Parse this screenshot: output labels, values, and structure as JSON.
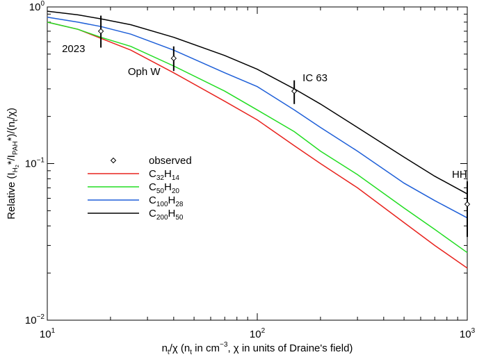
{
  "chart_data": {
    "type": "line",
    "xscale": "log",
    "yscale": "log",
    "xlim": [
      10,
      1000
    ],
    "ylim": [
      0.01,
      1
    ],
    "grid": false,
    "legend_position": "middle-left",
    "xlabel": {
      "pre": "n",
      "pre_sub": "t",
      "mid1": "/χ  (n",
      "mid1_sub": "t",
      "mid2": " in cm",
      "mid2_sup": "−3",
      "post": ", χ in units of Draine's field)"
    },
    "ylabel": {
      "pre": "Relative  (I",
      "sub1": "H",
      "sub1b": "2",
      "mid": "*/I",
      "sub2": "PAH",
      "post": "*)/(n",
      "sub3": "t",
      "end": "/χ)"
    },
    "xticks": [
      {
        "value": 10,
        "base": "10",
        "exp": "1"
      },
      {
        "value": 100,
        "base": "10",
        "exp": "2"
      },
      {
        "value": 1000,
        "base": "10",
        "exp": "3"
      }
    ],
    "yticks": [
      {
        "value": 0.01,
        "base": "10",
        "exp": "−2"
      },
      {
        "value": 0.1,
        "base": "10",
        "exp": "−1"
      },
      {
        "value": 1,
        "base": "10",
        "exp": "0"
      }
    ],
    "series": [
      {
        "name": "C32H14",
        "label_parts": [
          "C",
          "32",
          "H",
          "14"
        ],
        "color": "#e8231e",
        "x": [
          10,
          14,
          18,
          25,
          40,
          70,
          100,
          150,
          200,
          300,
          500,
          700,
          1000
        ],
        "y": [
          0.8,
          0.72,
          0.63,
          0.53,
          0.38,
          0.25,
          0.19,
          0.13,
          0.1,
          0.07,
          0.042,
          0.03,
          0.0215
        ]
      },
      {
        "name": "C50H20",
        "label_parts": [
          "C",
          "50",
          "H",
          "20"
        ],
        "color": "#22dd22",
        "x": [
          10,
          14,
          18,
          25,
          40,
          70,
          100,
          150,
          200,
          300,
          500,
          700,
          1000
        ],
        "y": [
          0.8,
          0.72,
          0.64,
          0.56,
          0.42,
          0.29,
          0.22,
          0.16,
          0.12,
          0.085,
          0.052,
          0.038,
          0.027
        ]
      },
      {
        "name": "C100H28",
        "label_parts": [
          "C",
          "100",
          "H",
          "28"
        ],
        "color": "#1e5fd8",
        "x": [
          10,
          14,
          18,
          25,
          40,
          70,
          100,
          150,
          200,
          300,
          500,
          700,
          1000
        ],
        "y": [
          0.86,
          0.8,
          0.75,
          0.67,
          0.53,
          0.38,
          0.31,
          0.22,
          0.17,
          0.12,
          0.075,
          0.058,
          0.045
        ]
      },
      {
        "name": "C200H50",
        "label_parts": [
          "C",
          "200",
          "H",
          "50"
        ],
        "color": "#000000",
        "x": [
          10,
          14,
          18,
          25,
          40,
          70,
          100,
          150,
          200,
          300,
          500,
          700,
          1000
        ],
        "y": [
          0.94,
          0.89,
          0.84,
          0.77,
          0.64,
          0.49,
          0.4,
          0.3,
          0.24,
          0.17,
          0.11,
          0.083,
          0.064
        ]
      }
    ],
    "observed": {
      "name": "observed",
      "points": [
        {
          "label": "2023",
          "x": 18,
          "y": 0.7,
          "ylo": 0.55,
          "yhi": 0.88
        },
        {
          "label": "Oph W",
          "x": 40,
          "y": 0.47,
          "ylo": 0.39,
          "yhi": 0.56
        },
        {
          "label": "IC 63",
          "x": 150,
          "y": 0.29,
          "ylo": 0.24,
          "yhi": 0.34
        },
        {
          "label": "HH",
          "x": 1000,
          "y": 0.055,
          "ylo": 0.034,
          "yhi": 0.077
        }
      ]
    }
  }
}
